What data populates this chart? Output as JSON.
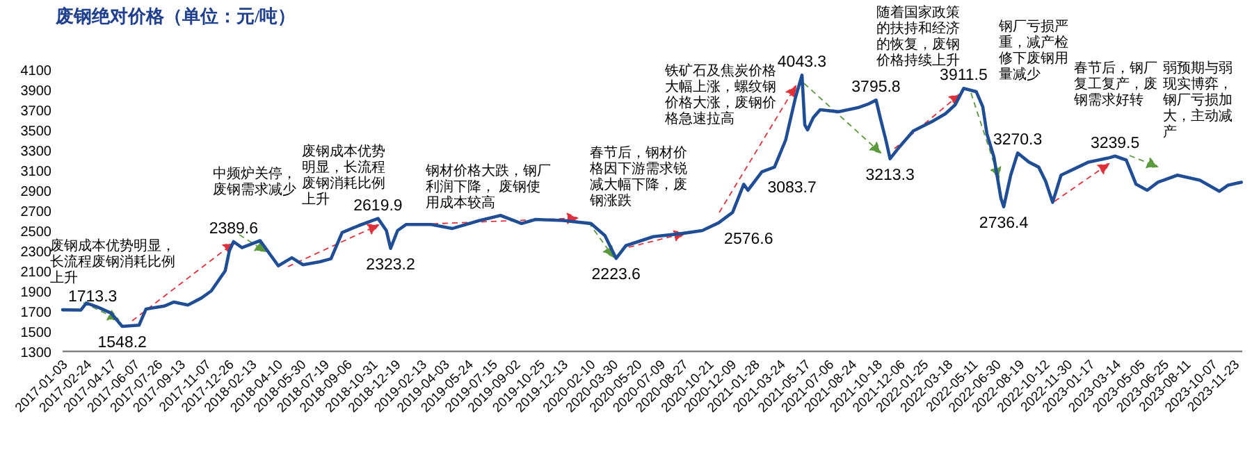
{
  "chart_data": {
    "type": "line",
    "title": "废钢绝对价格（单位：元/吨）",
    "annotations": [
      "废钢成本优势明显，长流程废钢消耗比例上升",
      "中频炉关停，废钢需求减少",
      "废钢成本优势明显，长流程废钢消耗比例上升",
      "钢材价格大跌，钢厂利润下降， 废钢使用成本较高",
      "春节后，钢材价格因下游需求锐减大幅下降，废钢涨跌",
      "铁矿石及焦炭价格大幅上涨，螺纹钢价格大涨，废钢价格急速拉高",
      "随着国家政策的扶持和经济的恢复，废钢价格持续上升",
      "钢厂亏损严重，减产检修下废钢用量减少",
      "春节后，钢厂复工复产，废钢需求好转",
      "弱预期与弱现实博弈，钢厂亏损加大，主动减产"
    ],
    "xlim": [
      "2017-01-03",
      "2023-12-10"
    ],
    "xticks": [
      "2017-01-03",
      "2017-02-24",
      "2017-04-17",
      "2017-06-07",
      "2017-07-26",
      "2017-09-13",
      "2017-11-07",
      "2017-12-26",
      "2018-02-13",
      "2018-04-10",
      "2018-05-30",
      "2018-07-19",
      "2018-09-06",
      "2018-10-31",
      "2018-12-19",
      "2019-02-13",
      "2019-04-03",
      "2019-05-24",
      "2019-07-15",
      "2019-09-02",
      "2019-10-25",
      "2019-12-13",
      "2020-02-10",
      "2020-03-30",
      "2020-05-20",
      "2020-07-09",
      "2020-08-27",
      "2020-10-21",
      "2020-12-09",
      "2021-01-28",
      "2021-03-24",
      "2021-05-17",
      "2021-07-06",
      "2021-08-24",
      "2021-10-18",
      "2021-12-06",
      "2022-01-25",
      "2022-03-18",
      "2022-05-11",
      "2022-06-30",
      "2022-08-19",
      "2022-10-12",
      "2022-11-30",
      "2023-01-17",
      "2023-03-14",
      "2023-05-05",
      "2023-06-25",
      "2023-08-11",
      "2023-10-07",
      "2023-11-23"
    ],
    "ylim": [
      1300,
      4100
    ],
    "yticks": [
      1300,
      1500,
      1700,
      1900,
      2100,
      2300,
      2500,
      2700,
      2900,
      3100,
      3300,
      3500,
      3700,
      3900,
      4100
    ],
    "grid": false,
    "marker": "none",
    "line_style": "solid",
    "series": [
      {
        "color": "#1f4e96",
        "x": [
          "2017-01-03",
          "2017-02-11",
          "2017-02-23",
          "2017-03-19",
          "2017-04-17",
          "2017-05-11",
          "2017-06-16",
          "2017-07-01",
          "2017-08-09",
          "2017-08-30",
          "2017-09-29",
          "2017-10-28",
          "2017-11-18",
          "2017-12-03",
          "2017-12-18",
          "2017-12-27",
          "2018-01-05",
          "2018-01-23",
          "2018-03-03",
          "2018-04-11",
          "2018-05-10",
          "2018-06-03",
          "2018-07-09",
          "2018-08-02",
          "2018-08-14",
          "2018-08-26",
          "2018-10-01",
          "2018-11-11",
          "2018-11-29",
          "2018-12-08",
          "2018-12-23",
          "2019-01-10",
          "2019-03-05",
          "2019-04-19",
          "2019-06-17",
          "2019-08-01",
          "2019-09-15",
          "2019-10-15",
          "2019-12-13",
          "2020-02-11",
          "2020-03-12",
          "2020-04-05",
          "2020-04-26",
          "2020-06-24",
          "2020-08-23",
          "2020-10-07",
          "2020-11-11",
          "2020-12-11",
          "2021-01-04",
          "2021-01-13",
          "2021-02-12",
          "2021-03-11",
          "2021-04-04",
          "2021-04-25",
          "2021-05-09",
          "2021-05-15",
          "2021-05-21",
          "2021-06-02",
          "2021-06-17",
          "2021-07-26",
          "2021-09-06",
          "2021-09-30",
          "2021-10-15",
          "2021-10-24",
          "2021-11-05",
          "2021-11-14",
          "2021-12-04",
          "2022-01-03",
          "2022-02-11",
          "2022-03-13",
          "2022-04-03",
          "2022-04-21",
          "2022-05-18",
          "2022-06-01",
          "2022-06-10",
          "2022-06-25",
          "2022-07-10",
          "2022-07-16",
          "2022-07-31",
          "2022-08-15",
          "2022-09-08",
          "2022-09-29",
          "2022-10-14",
          "2022-10-29",
          "2022-11-16",
          "2022-12-13",
          "2023-01-14",
          "2023-02-25",
          "2023-03-12",
          "2023-04-05",
          "2023-04-26",
          "2023-05-20",
          "2023-06-12",
          "2023-07-24",
          "2023-09-10",
          "2023-10-22",
          "2023-11-09",
          "2023-12-08"
        ],
        "values": [
          1713.3,
          1710,
          1780,
          1740,
          1680,
          1548.2,
          1560,
          1720,
          1750,
          1790,
          1760,
          1830,
          1900,
          2000,
          2100,
          2300,
          2389.6,
          2330,
          2400,
          2150,
          2230,
          2160,
          2190,
          2220,
          2350,
          2480,
          2550,
          2619.9,
          2500,
          2323.2,
          2500,
          2560,
          2560,
          2520,
          2600,
          2650,
          2570,
          2610,
          2600,
          2570,
          2450,
          2223.6,
          2350,
          2440,
          2470,
          2500,
          2576.6,
          2680,
          2960,
          2900,
          3083.7,
          3130,
          3400,
          3820,
          4043.3,
          3550,
          3500,
          3620,
          3700,
          3680,
          3720,
          3760,
          3795.8,
          3620,
          3400,
          3213.3,
          3330,
          3490,
          3580,
          3660,
          3750,
          3911.5,
          3880,
          3730,
          3460,
          3230,
          2820,
          2736.4,
          3050,
          3270.3,
          3180,
          3130,
          2990,
          2780,
          3050,
          3110,
          3180,
          3220,
          3239.5,
          3200,
          2960,
          2900,
          2980,
          3050,
          3000,
          2890,
          2950,
          2980
        ],
        "value_labels": [
          "1713.3",
          null,
          null,
          null,
          null,
          "1548.2",
          null,
          null,
          null,
          null,
          null,
          null,
          null,
          null,
          null,
          null,
          "2389.6",
          null,
          null,
          null,
          null,
          null,
          null,
          null,
          null,
          null,
          null,
          "2619.9",
          null,
          "2323.2",
          null,
          null,
          null,
          null,
          null,
          null,
          null,
          null,
          null,
          null,
          null,
          "2223.6",
          null,
          null,
          null,
          null,
          "2576.6",
          null,
          null,
          null,
          "3083.7",
          null,
          null,
          null,
          "4043.3",
          null,
          null,
          null,
          null,
          null,
          null,
          null,
          "3795.8",
          null,
          null,
          "3213.3",
          null,
          null,
          null,
          null,
          null,
          "3911.5",
          null,
          null,
          null,
          null,
          null,
          "2736.4",
          null,
          "3270.3",
          null,
          null,
          null,
          null,
          null,
          null,
          null,
          null,
          "3239.5",
          null,
          null,
          null,
          null,
          null,
          null,
          null,
          null,
          null
        ]
      }
    ]
  }
}
